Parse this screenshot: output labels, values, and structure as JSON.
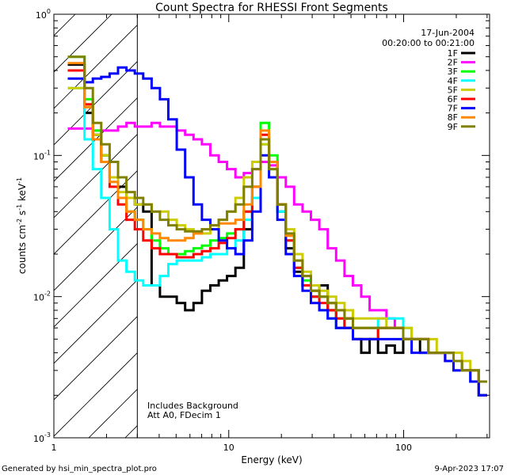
{
  "chart_data": {
    "type": "line",
    "title": "Count Spectra for RHESSI Front Segments",
    "xlabel": "Energy (keV)",
    "ylabel_parts": {
      "base": "counts cm",
      "sup1": "-2",
      "mid1": " s",
      "sup2": "-1",
      "mid2": " keV",
      "sup3": "-1"
    },
    "xscale": "log",
    "yscale": "log",
    "xlim": [
      1,
      310
    ],
    "ylim": [
      0.001,
      1
    ],
    "x_ticks": [
      {
        "v": 1,
        "label": "1"
      },
      {
        "v": 10,
        "label": "10"
      },
      {
        "v": 100,
        "label": "100"
      }
    ],
    "y_ticks": [
      {
        "v": 1,
        "base": "10",
        "exp": "0"
      },
      {
        "v": 0.1,
        "base": "10",
        "exp": "-1"
      },
      {
        "v": 0.01,
        "base": "10",
        "exp": "-2"
      },
      {
        "v": 0.001,
        "base": "10",
        "exp": "-3"
      }
    ],
    "hatch_region_x": [
      1,
      3
    ],
    "legend_header": [
      "17-Jun-2004",
      "00:20:00 to 00:21:00"
    ],
    "legend_position": "top-right",
    "annotations": [
      "Includes Background",
      "Att A0, FDecim 1"
    ],
    "series": [
      {
        "name": "1F",
        "color": "#000000",
        "values": [
          0.44,
          0.44,
          0.2,
          0.14,
          0.1,
          0.09,
          0.06,
          0.05,
          0.045,
          0.04,
          0.012,
          0.01,
          0.01,
          0.009,
          0.008,
          0.009,
          0.011,
          0.012,
          0.013,
          0.014,
          0.016,
          0.03,
          0.05,
          0.13,
          0.09,
          0.04,
          0.022,
          0.015,
          0.012,
          0.01,
          0.012,
          0.008,
          0.006,
          0.007,
          0.005,
          0.004,
          0.005,
          0.004,
          0.0045,
          0.004,
          0.005,
          0.005,
          0.004,
          0.004,
          0.004,
          0.0035,
          0.0035,
          0.003,
          0.003,
          0.0025
        ]
      },
      {
        "name": "2F",
        "color": "#ff00ff",
        "values": [
          0.155,
          0.155,
          0.155,
          0.15,
          0.15,
          0.15,
          0.16,
          0.17,
          0.16,
          0.16,
          0.17,
          0.16,
          0.16,
          0.15,
          0.14,
          0.13,
          0.12,
          0.1,
          0.09,
          0.08,
          0.07,
          0.075,
          0.08,
          0.09,
          0.085,
          0.07,
          0.06,
          0.045,
          0.04,
          0.035,
          0.03,
          0.022,
          0.018,
          0.014,
          0.012,
          0.01,
          0.008,
          0.008,
          0.007,
          0.006,
          0.005,
          0.005,
          0.005,
          0.004,
          0.004,
          0.0035,
          0.003,
          0.003,
          0.0025,
          0.002
        ]
      },
      {
        "name": "3F",
        "color": "#00ff00",
        "values": [
          0.5,
          0.5,
          0.25,
          0.15,
          0.1,
          0.07,
          0.05,
          0.04,
          0.035,
          0.03,
          0.025,
          0.022,
          0.02,
          0.02,
          0.021,
          0.022,
          0.023,
          0.025,
          0.026,
          0.028,
          0.03,
          0.04,
          0.06,
          0.17,
          0.1,
          0.045,
          0.025,
          0.016,
          0.013,
          0.011,
          0.01,
          0.009,
          0.007,
          0.006,
          0.005,
          0.005,
          0.005,
          0.006,
          0.006,
          0.006,
          0.005,
          0.005,
          0.005,
          0.004,
          0.004,
          0.004,
          0.0035,
          0.003,
          0.003,
          0.002
        ]
      },
      {
        "name": "4F",
        "color": "#00ffff",
        "values": [
          0.3,
          0.3,
          0.13,
          0.08,
          0.05,
          0.03,
          0.018,
          0.015,
          0.013,
          0.012,
          0.012,
          0.014,
          0.017,
          0.018,
          0.018,
          0.018,
          0.019,
          0.02,
          0.02,
          0.022,
          0.025,
          0.035,
          0.05,
          0.12,
          0.08,
          0.04,
          0.025,
          0.016,
          0.012,
          0.01,
          0.008,
          0.007,
          0.006,
          0.006,
          0.006,
          0.006,
          0.006,
          0.007,
          0.007,
          0.007,
          0.006,
          0.005,
          0.005,
          0.004,
          0.004,
          0.004,
          0.0035,
          0.003,
          0.0025,
          0.002
        ]
      },
      {
        "name": "5F",
        "color": "#cccc00",
        "values": [
          0.3,
          0.3,
          0.22,
          0.14,
          0.1,
          0.07,
          0.055,
          0.05,
          0.045,
          0.045,
          0.04,
          0.04,
          0.035,
          0.032,
          0.03,
          0.028,
          0.028,
          0.03,
          0.035,
          0.04,
          0.05,
          0.07,
          0.09,
          0.12,
          0.08,
          0.045,
          0.03,
          0.02,
          0.015,
          0.012,
          0.011,
          0.01,
          0.009,
          0.008,
          0.007,
          0.007,
          0.007,
          0.007,
          0.006,
          0.006,
          0.006,
          0.005,
          0.005,
          0.005,
          0.004,
          0.004,
          0.004,
          0.0035,
          0.003,
          0.0025
        ]
      },
      {
        "name": "6F",
        "color": "#ff0000",
        "values": [
          0.4,
          0.4,
          0.23,
          0.13,
          0.09,
          0.06,
          0.045,
          0.035,
          0.03,
          0.025,
          0.022,
          0.02,
          0.02,
          0.019,
          0.019,
          0.02,
          0.021,
          0.022,
          0.024,
          0.026,
          0.03,
          0.04,
          0.06,
          0.14,
          0.09,
          0.045,
          0.025,
          0.016,
          0.012,
          0.01,
          0.009,
          0.008,
          0.007,
          0.006,
          0.005,
          0.005,
          0.005,
          0.006,
          0.006,
          0.006,
          0.005,
          0.005,
          0.005,
          0.004,
          0.004,
          0.004,
          0.0035,
          0.003,
          0.003,
          0.002
        ]
      },
      {
        "name": "7F",
        "color": "#0000ff",
        "values": [
          0.35,
          0.35,
          0.33,
          0.35,
          0.36,
          0.38,
          0.42,
          0.4,
          0.38,
          0.35,
          0.3,
          0.25,
          0.18,
          0.11,
          0.07,
          0.045,
          0.035,
          0.03,
          0.025,
          0.022,
          0.02,
          0.025,
          0.04,
          0.1,
          0.07,
          0.035,
          0.02,
          0.014,
          0.011,
          0.009,
          0.008,
          0.007,
          0.006,
          0.006,
          0.005,
          0.005,
          0.005,
          0.005,
          0.005,
          0.005,
          0.005,
          0.004,
          0.004,
          0.004,
          0.004,
          0.0035,
          0.003,
          0.003,
          0.0025,
          0.002
        ]
      },
      {
        "name": "8F",
        "color": "#ff8800",
        "values": [
          0.45,
          0.45,
          0.22,
          0.13,
          0.09,
          0.065,
          0.05,
          0.04,
          0.035,
          0.03,
          0.028,
          0.026,
          0.025,
          0.025,
          0.026,
          0.028,
          0.03,
          0.032,
          0.033,
          0.033,
          0.035,
          0.045,
          0.06,
          0.15,
          0.09,
          0.045,
          0.027,
          0.018,
          0.014,
          0.011,
          0.01,
          0.009,
          0.008,
          0.007,
          0.006,
          0.006,
          0.006,
          0.006,
          0.006,
          0.006,
          0.005,
          0.005,
          0.005,
          0.004,
          0.004,
          0.004,
          0.0035,
          0.003,
          0.003,
          0.0025
        ]
      },
      {
        "name": "9F",
        "color": "#808000",
        "values": [
          0.5,
          0.5,
          0.3,
          0.17,
          0.12,
          0.09,
          0.07,
          0.055,
          0.05,
          0.045,
          0.04,
          0.035,
          0.032,
          0.03,
          0.029,
          0.029,
          0.03,
          0.032,
          0.035,
          0.04,
          0.045,
          0.06,
          0.08,
          0.13,
          0.08,
          0.045,
          0.028,
          0.018,
          0.014,
          0.011,
          0.01,
          0.009,
          0.008,
          0.007,
          0.006,
          0.006,
          0.006,
          0.006,
          0.006,
          0.006,
          0.005,
          0.005,
          0.005,
          0.004,
          0.004,
          0.004,
          0.0035,
          0.003,
          0.003,
          0.0025
        ]
      }
    ]
  },
  "footer": {
    "generated_by": "Generated by hsi_min_spectra_plot.pro",
    "timestamp": "9-Apr-2023 17:07"
  }
}
